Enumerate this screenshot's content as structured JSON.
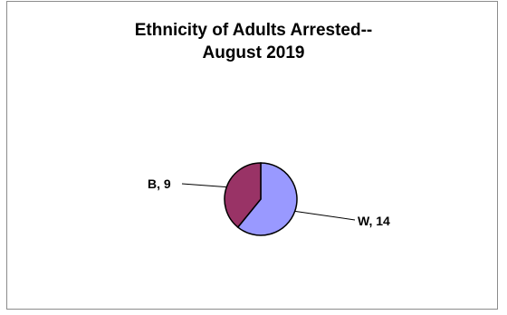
{
  "chart_data": {
    "type": "pie",
    "title_lines": [
      "Ethnicity of Adults Arrested--",
      "August 2019"
    ],
    "slices": [
      {
        "label": "W",
        "value": 14,
        "data_label": "W, 14",
        "color": "#9999ff"
      },
      {
        "label": "B",
        "value": 9,
        "data_label": "B, 9",
        "color": "#993366"
      }
    ],
    "legend": "none",
    "start_angle_deg": 0,
    "direction": "clockwise"
  }
}
